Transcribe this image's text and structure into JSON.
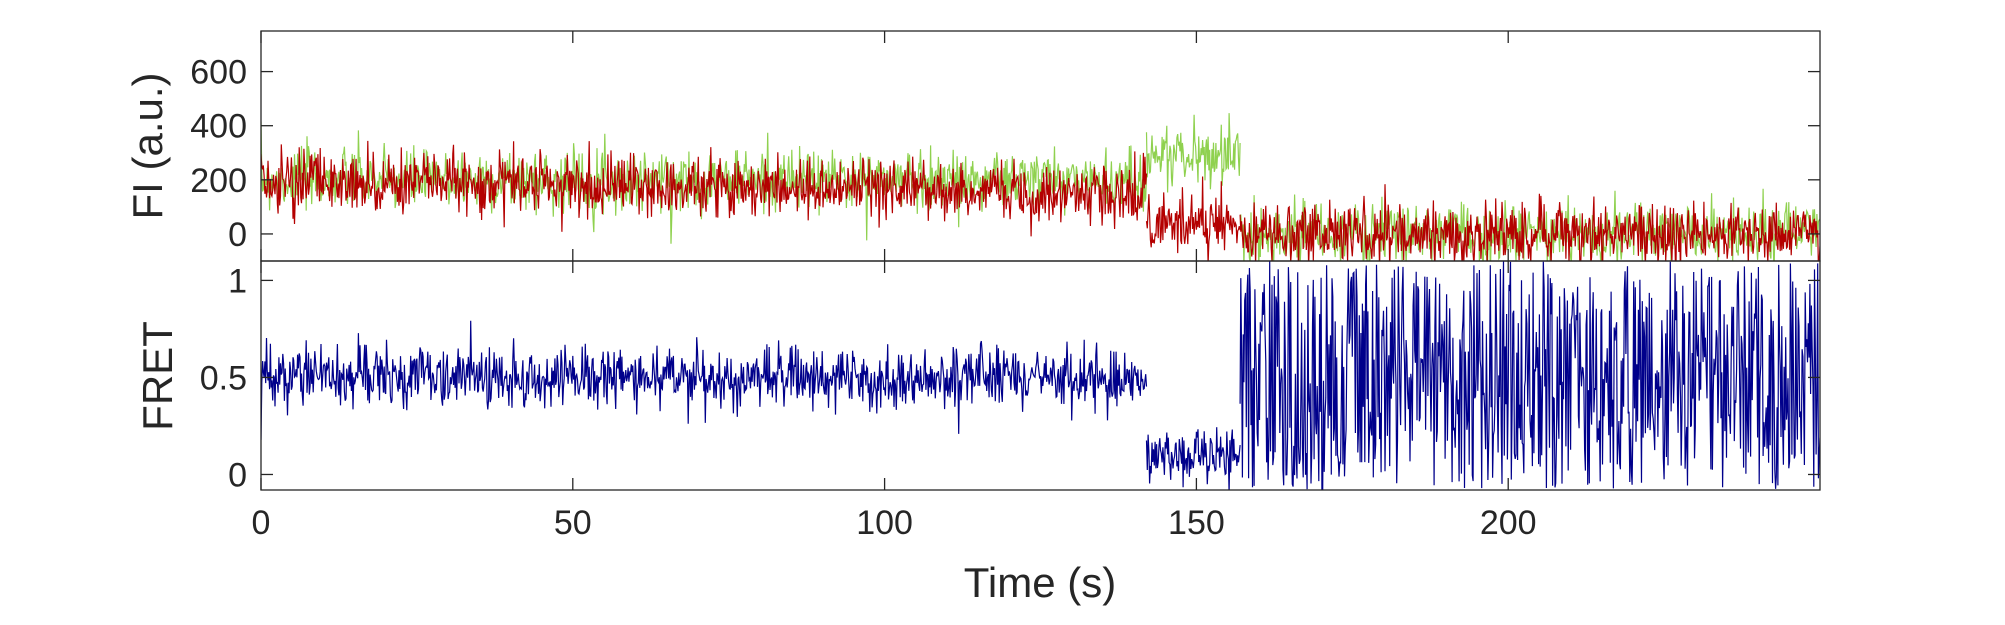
{
  "chart_data": [
    {
      "type": "line",
      "ylabel": "FI (a.u.)",
      "xlabel": "",
      "xlim": [
        0,
        250
      ],
      "ylim": [
        -100,
        750
      ],
      "xticks": [
        0,
        50,
        100,
        150,
        200
      ],
      "yticks": [
        0,
        200,
        400,
        600
      ],
      "xtick_labels": [],
      "ytick_labels": [
        "0",
        "200",
        "400",
        "600"
      ],
      "grid": false,
      "series": [
        {
          "color": "#8fd14f",
          "segments": [
            {
              "x": [
                0,
                142
              ],
              "y": [
                200,
                200
              ]
            },
            {
              "x": [
                142,
                157
              ],
              "y": [
                290,
                290
              ]
            },
            {
              "x": [
                157,
                250
              ],
              "y": [
                0,
                0
              ]
            }
          ]
        },
        {
          "color": "#b40000",
          "segments": [
            {
              "x": [
                0,
                142
              ],
              "y": [
                200,
                150
              ]
            },
            {
              "x": [
                142,
                157
              ],
              "y": [
                50,
                50
              ]
            },
            {
              "x": [
                157,
                250
              ],
              "y": [
                0,
                0
              ]
            }
          ]
        }
      ]
    },
    {
      "type": "line",
      "ylabel": "FRET",
      "xlabel": "Time (s)",
      "xlim": [
        0,
        250
      ],
      "ylim": [
        -0.08,
        1.1
      ],
      "xticks": [
        0,
        50,
        100,
        150,
        200
      ],
      "yticks": [
        0,
        0.5,
        1
      ],
      "xtick_labels": [
        "0",
        "50",
        "100",
        "150",
        "200"
      ],
      "ytick_labels": [
        "0",
        "0.5",
        "1"
      ],
      "grid": false,
      "series": [
        {
          "color": "#00008b",
          "segments": [
            {
              "x": [
                0,
                142
              ],
              "y": [
                0.5,
                0.5
              ]
            },
            {
              "x": [
                142,
                157
              ],
              "y": [
                0.1,
                0.1
              ]
            },
            {
              "x": [
                157,
                250
              ],
              "y": [
                -0.08,
                1.1
              ]
            }
          ]
        }
      ]
    }
  ]
}
